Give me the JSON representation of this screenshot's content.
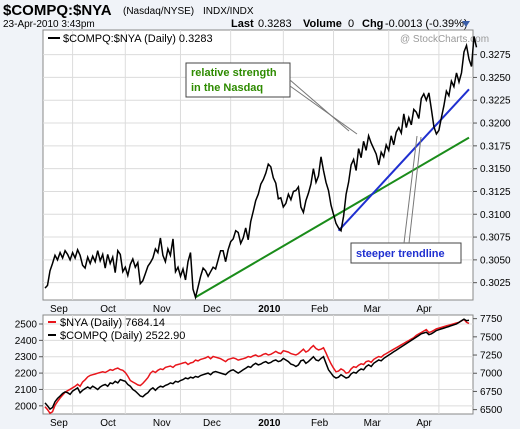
{
  "header": {
    "symbol": "$COMPQ:$NYA",
    "exchange": "(Nasdaq/NYSE)",
    "type": "INDX/INDX",
    "date": "23-Apr-2010 3:43pm",
    "last_label": "Last",
    "last_value": "0.3283",
    "volume_label": "Volume",
    "volume_value": "0",
    "chg_label": "Chg",
    "chg_value": "-0.0013 (-0.39%)",
    "watermark": "@ StockCharts.com"
  },
  "colors": {
    "ratio_line": "#000000",
    "green_trendline": "#1a8c1a",
    "blue_trendline": "#1f2fd0",
    "nya_line": "#e8151b",
    "compq_line": "#000000"
  },
  "chart_data": [
    {
      "type": "line",
      "legend": "$COMPQ:$NYA (Daily) 0.3283",
      "x_ticks": [
        "Sep",
        "Oct",
        "Nov",
        "Dec",
        "2010",
        "Feb",
        "Mar",
        "Apr"
      ],
      "y_ticks": [
        "0.3275",
        "0.3250",
        "0.3225",
        "0.3200",
        "0.3175",
        "0.3150",
        "0.3125",
        "0.3100",
        "0.3075",
        "0.3050",
        "0.3025"
      ],
      "ylim": [
        0.3006,
        0.3302
      ],
      "n_points": 170,
      "values": [
        0.3019,
        0.3022,
        0.3038,
        0.3046,
        0.3055,
        0.305,
        0.3058,
        0.3052,
        0.306,
        0.3056,
        0.305,
        0.3058,
        0.3052,
        0.3061,
        0.3055,
        0.3044,
        0.3041,
        0.3053,
        0.3046,
        0.3054,
        0.3048,
        0.306,
        0.3049,
        0.3056,
        0.3041,
        0.3056,
        0.3046,
        0.3053,
        0.3036,
        0.306,
        0.3056,
        0.3037,
        0.3042,
        0.3033,
        0.3045,
        0.3051,
        0.3042,
        0.3047,
        0.3024,
        0.3027,
        0.3035,
        0.3043,
        0.3047,
        0.3052,
        0.3062,
        0.3058,
        0.3074,
        0.3055,
        0.3048,
        0.3062,
        0.3055,
        0.3073,
        0.3037,
        0.3042,
        0.3032,
        0.304,
        0.3028,
        0.3048,
        0.3058,
        0.3018,
        0.3009,
        0.302,
        0.3032,
        0.3041,
        0.3038,
        0.3032,
        0.3037,
        0.3042,
        0.304,
        0.305,
        0.306,
        0.306,
        0.3048,
        0.3061,
        0.307,
        0.3073,
        0.3082,
        0.308,
        0.3068,
        0.3074,
        0.3085,
        0.3072,
        0.3092,
        0.3103,
        0.3115,
        0.3122,
        0.3133,
        0.3138,
        0.3145,
        0.3155,
        0.3152,
        0.314,
        0.3134,
        0.3117,
        0.3118,
        0.3108,
        0.3112,
        0.3122,
        0.3116,
        0.3125,
        0.3126,
        0.313,
        0.3108,
        0.3102,
        0.3115,
        0.3123,
        0.3133,
        0.315,
        0.3135,
        0.3142,
        0.3163,
        0.3148,
        0.3135,
        0.3126,
        0.311,
        0.31,
        0.309,
        0.3085,
        0.3082,
        0.3098,
        0.3122,
        0.3135,
        0.3154,
        0.316,
        0.3148,
        0.3172,
        0.3162,
        0.318,
        0.317,
        0.3186,
        0.3178,
        0.3172,
        0.3166,
        0.3154,
        0.3168,
        0.3163,
        0.3176,
        0.317,
        0.3186,
        0.3176,
        0.319,
        0.3195,
        0.3189,
        0.321,
        0.3195,
        0.3206,
        0.3198,
        0.3215,
        0.3212,
        0.3205,
        0.3227,
        0.3232,
        0.3225,
        0.3233,
        0.3215,
        0.3196,
        0.3188,
        0.3192,
        0.3206,
        0.3219,
        0.3235,
        0.323,
        0.3246,
        0.324,
        0.3255,
        0.3245,
        0.3255,
        0.3278,
        0.3285,
        0.327,
        0.3262,
        0.3295,
        0.3283
      ],
      "trendlines": [
        {
          "color": "green",
          "from": [
            60,
            0.3009
          ],
          "to": [
            169,
            0.3184
          ]
        },
        {
          "color": "blue",
          "from": [
            117,
            0.3082
          ],
          "to": [
            169,
            0.3237
          ]
        }
      ],
      "annotations": [
        {
          "text": "relative strength",
          "color": "green"
        },
        {
          "text": "in the Nasdaq",
          "color": "green"
        },
        {
          "text": "steeper trendline",
          "color": "blue"
        }
      ]
    },
    {
      "type": "line",
      "series": [
        {
          "name": "$NYA (Daily) 7684.14",
          "color": "red",
          "axis": "right"
        },
        {
          "name": "$COMPQ (Daily) 2522.90",
          "color": "black",
          "axis": "left"
        }
      ],
      "x_ticks": [
        "Sep",
        "Oct",
        "Nov",
        "Dec",
        "2010",
        "Feb",
        "Mar",
        "Apr"
      ],
      "y_left_ticks": [
        "2500",
        "2400",
        "2300",
        "2200",
        "2100",
        "2000"
      ],
      "y_right_ticks": [
        "7750",
        "7500",
        "7250",
        "7000",
        "6750",
        "6500"
      ],
      "ylim_left": [
        1950,
        2555
      ],
      "ylim_right": [
        6440,
        7800
      ],
      "compq": [
        2018,
        2000,
        1980,
        1990,
        2025,
        2045,
        2060,
        2075,
        2085,
        2080,
        2070,
        2090,
        2100,
        2110,
        2080,
        2095,
        2105,
        2115,
        2105,
        2120,
        2110,
        2100,
        2115,
        2125,
        2130,
        2120,
        2140,
        2135,
        2150,
        2140,
        2160,
        2155,
        2150,
        2130,
        2120,
        2100,
        2090,
        2075,
        2060,
        2055,
        2070,
        2080,
        2100,
        2110,
        2095,
        2110,
        2120,
        2115,
        2125,
        2130,
        2140,
        2135,
        2150,
        2145,
        2155,
        2160,
        2170,
        2165,
        2175,
        2170,
        2180,
        2175,
        2185,
        2190,
        2195,
        2200,
        2190,
        2205,
        2210,
        2205,
        2200,
        2195,
        2190,
        2205,
        2215,
        2220,
        2210,
        2200,
        2210,
        2220,
        2230,
        2240,
        2235,
        2250,
        2260,
        2250,
        2255,
        2265,
        2270,
        2260,
        2265,
        2275,
        2280,
        2270,
        2275,
        2290,
        2280,
        2270,
        2255,
        2250,
        2240,
        2250,
        2275,
        2280,
        2260,
        2270,
        2285,
        2300,
        2280,
        2275,
        2290,
        2300,
        2260,
        2220,
        2200,
        2180,
        2170,
        2175,
        2190,
        2180,
        2170,
        2175,
        2195,
        2205,
        2200,
        2215,
        2225,
        2220,
        2240,
        2250,
        2240,
        2260,
        2270,
        2280,
        2275,
        2290,
        2300,
        2310,
        2320,
        2330,
        2340,
        2350,
        2360,
        2370,
        2380,
        2390,
        2400,
        2410,
        2420,
        2430,
        2440,
        2445,
        2450,
        2435,
        2440,
        2450,
        2460,
        2465,
        2470,
        2475,
        2480,
        2485,
        2490,
        2495,
        2500,
        2510,
        2520,
        2530,
        2520,
        2522.9
      ],
      "nya": [
        6540,
        6500,
        6450,
        6470,
        6560,
        6610,
        6660,
        6700,
        6740,
        6760,
        6780,
        6800,
        6820,
        6850,
        6820,
        6880,
        6910,
        6950,
        6970,
        6980,
        6990,
        7000,
        7010,
        7020,
        7010,
        7030,
        7050,
        7040,
        7060,
        7070,
        7050,
        7040,
        7010,
        6960,
        6900,
        6880,
        6860,
        6840,
        6830,
        6860,
        6900,
        6940,
        7000,
        7030,
        7010,
        7040,
        7060,
        7050,
        7080,
        7090,
        7100,
        7080,
        7110,
        7120,
        7130,
        7140,
        7150,
        7120,
        7140,
        7150,
        7180,
        7170,
        7190,
        7200,
        7210,
        7230,
        7200,
        7230,
        7220,
        7210,
        7200,
        7180,
        7160,
        7190,
        7200,
        7210,
        7200,
        7180,
        7190,
        7200,
        7210,
        7230,
        7220,
        7240,
        7250,
        7230,
        7240,
        7260,
        7270,
        7250,
        7260,
        7280,
        7300,
        7280,
        7270,
        7310,
        7300,
        7290,
        7270,
        7260,
        7250,
        7270,
        7300,
        7330,
        7290,
        7310,
        7350,
        7380,
        7340,
        7320,
        7330,
        7350,
        7280,
        7200,
        7130,
        7070,
        7020,
        7030,
        7060,
        7040,
        7000,
        7010,
        7060,
        7090,
        7080,
        7110,
        7130,
        7120,
        7160,
        7170,
        7150,
        7190,
        7210,
        7230,
        7220,
        7250,
        7270,
        7290,
        7310,
        7330,
        7350,
        7370,
        7390,
        7410,
        7430,
        7450,
        7470,
        7490,
        7520,
        7540,
        7560,
        7580,
        7600,
        7560,
        7570,
        7590,
        7610,
        7620,
        7630,
        7640,
        7650,
        7660,
        7670,
        7680,
        7690,
        7700,
        7720,
        7740,
        7700,
        7684.14
      ]
    }
  ]
}
